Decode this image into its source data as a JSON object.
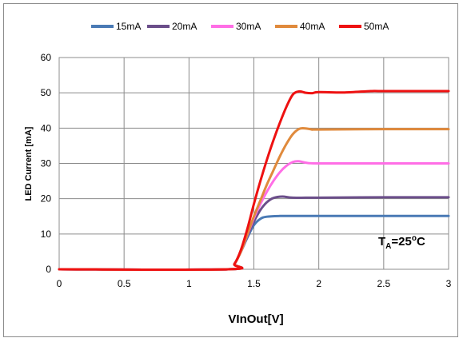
{
  "chart_data": {
    "type": "line",
    "title": "",
    "xlabel": "VInOut[V]",
    "ylabel": "LED Current [mA]",
    "xlim": [
      0,
      3
    ],
    "ylim": [
      0,
      60
    ],
    "x_ticks": [
      "0",
      "0.5",
      "1",
      "1.5",
      "2",
      "2.5",
      "3"
    ],
    "y_ticks": [
      "0",
      "10",
      "20",
      "30",
      "40",
      "50",
      "60"
    ],
    "grid": true,
    "legend_position": "top",
    "annotation": {
      "main": "T",
      "sub": "A",
      "rest": "=25",
      "sup": "o",
      "unit": "C"
    },
    "series": [
      {
        "name": "15mA",
        "color": "#4a7ab5",
        "x": [
          0,
          1.3,
          1.35,
          1.4,
          1.45,
          1.5,
          1.55,
          1.6,
          1.7,
          1.8,
          2.0,
          2.5,
          3.0
        ],
        "y": [
          0,
          0,
          1.5,
          5,
          9,
          12.5,
          14.3,
          14.9,
          15.1,
          15.1,
          15.1,
          15.1,
          15.1
        ]
      },
      {
        "name": "20mA",
        "color": "#6b4e8a",
        "x": [
          0,
          1.3,
          1.35,
          1.4,
          1.45,
          1.5,
          1.55,
          1.6,
          1.65,
          1.72,
          1.8,
          2.0,
          2.5,
          3.0
        ],
        "y": [
          0,
          0,
          1.5,
          5,
          9.5,
          13.5,
          16.8,
          19.0,
          20.2,
          20.6,
          20.3,
          20.3,
          20.4,
          20.4
        ]
      },
      {
        "name": "30mA",
        "color": "#ff6ee6",
        "x": [
          0,
          1.3,
          1.35,
          1.4,
          1.45,
          1.5,
          1.55,
          1.6,
          1.65,
          1.7,
          1.75,
          1.8,
          1.85,
          1.9,
          2.0,
          2.5,
          3.0
        ],
        "y": [
          0,
          0,
          1.5,
          5,
          9.8,
          14.5,
          18.5,
          22.0,
          25.0,
          27.5,
          29.3,
          30.4,
          30.6,
          30.2,
          30.0,
          30.0,
          30.0
        ]
      },
      {
        "name": "40mA",
        "color": "#e08a3c",
        "x": [
          0,
          1.3,
          1.35,
          1.4,
          1.45,
          1.5,
          1.55,
          1.6,
          1.65,
          1.7,
          1.75,
          1.8,
          1.85,
          1.9,
          1.95,
          2.0,
          2.5,
          3.0
        ],
        "y": [
          0,
          0,
          1.5,
          5,
          10,
          15,
          19.5,
          24.0,
          28.0,
          32.0,
          35.5,
          38.3,
          39.8,
          39.9,
          39.6,
          39.6,
          39.7,
          39.7
        ]
      },
      {
        "name": "50mA",
        "color": "#ee1111",
        "x": [
          0,
          1.3,
          1.35,
          1.4,
          1.45,
          1.5,
          1.55,
          1.6,
          1.65,
          1.7,
          1.75,
          1.8,
          1.85,
          1.9,
          1.95,
          2.0,
          2.2,
          2.4,
          2.5,
          3.0
        ],
        "y": [
          0,
          0,
          1.5,
          5.5,
          11.5,
          18.5,
          25.0,
          31.0,
          36.5,
          41.5,
          46.0,
          49.5,
          50.4,
          50.0,
          49.9,
          50.2,
          50.1,
          50.5,
          50.5,
          50.5
        ]
      }
    ]
  }
}
